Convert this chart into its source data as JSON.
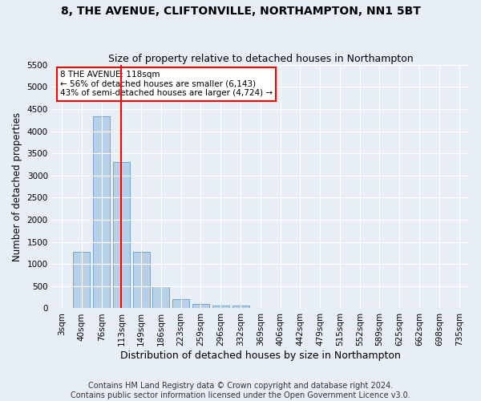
{
  "title": "8, THE AVENUE, CLIFTONVILLE, NORTHAMPTON, NN1 5BT",
  "subtitle": "Size of property relative to detached houses in Northampton",
  "xlabel": "Distribution of detached houses by size in Northampton",
  "ylabel": "Number of detached properties",
  "footer_line1": "Contains HM Land Registry data © Crown copyright and database right 2024.",
  "footer_line2": "Contains public sector information licensed under the Open Government Licence v3.0.",
  "bar_labels": [
    "3sqm",
    "40sqm",
    "76sqm",
    "113sqm",
    "149sqm",
    "186sqm",
    "223sqm",
    "259sqm",
    "296sqm",
    "332sqm",
    "369sqm",
    "406sqm",
    "442sqm",
    "479sqm",
    "515sqm",
    "552sqm",
    "589sqm",
    "625sqm",
    "662sqm",
    "698sqm",
    "735sqm"
  ],
  "bar_values": [
    0,
    1270,
    4330,
    3300,
    1270,
    490,
    215,
    90,
    70,
    55,
    0,
    0,
    0,
    0,
    0,
    0,
    0,
    0,
    0,
    0,
    0
  ],
  "bar_color": "#b8cfe8",
  "bar_edge_color": "#6699cc",
  "vline_color": "red",
  "vline_pos": 3.0,
  "annotation_text": "8 THE AVENUE: 118sqm\n← 56% of detached houses are smaller (6,143)\n43% of semi-detached houses are larger (4,724) →",
  "ylim": [
    0,
    5500
  ],
  "yticks": [
    0,
    500,
    1000,
    1500,
    2000,
    2500,
    3000,
    3500,
    4000,
    4500,
    5000,
    5500
  ],
  "background_color": "#e8eef5",
  "plot_background_color": "#e8eef5",
  "grid_color": "#ffffff",
  "title_fontsize": 10,
  "subtitle_fontsize": 9,
  "xlabel_fontsize": 9,
  "ylabel_fontsize": 8.5,
  "footer_fontsize": 7,
  "tick_fontsize": 7.5,
  "annotation_fontsize": 7.5
}
